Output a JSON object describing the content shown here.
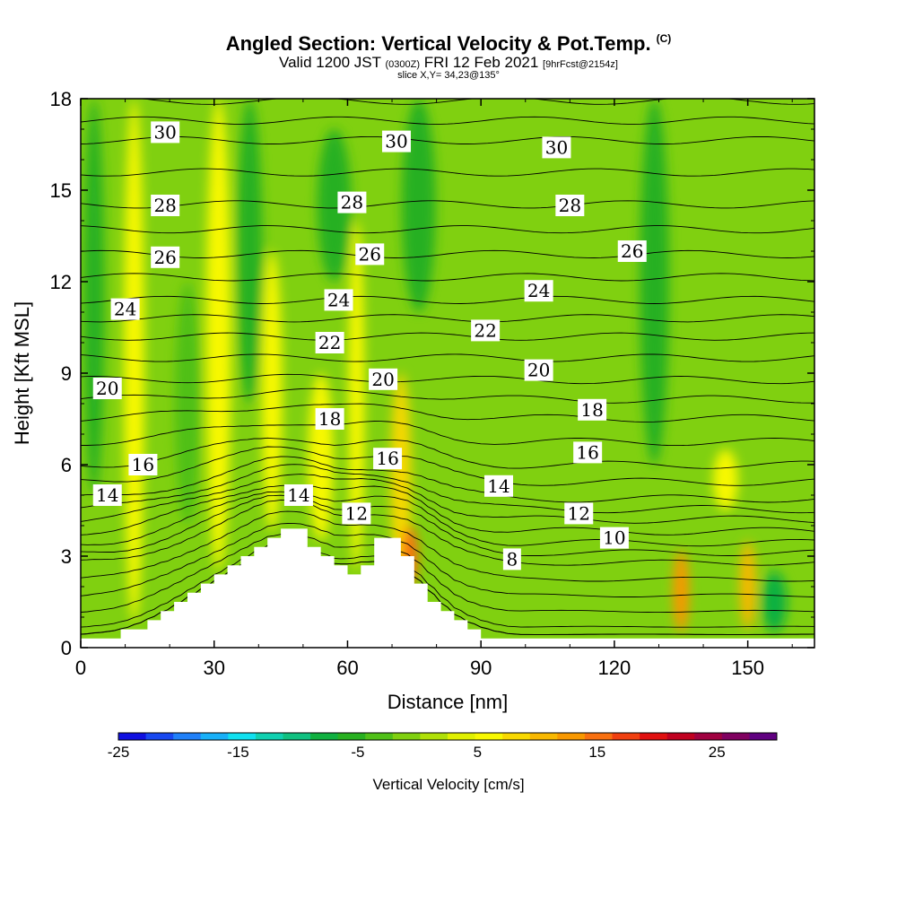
{
  "header": {
    "title": "Angled Section: Vertical Velocity & Pot.Temp.",
    "title_tag": "(C)",
    "valid_prefix": "Valid 1200 JST",
    "valid_utc": "(0300Z)",
    "valid_date": "FRI 12 Feb 2021",
    "forecast_tag": "[9hrFcst@2154z]",
    "slice_note": "slice X,Y= 34,23@135°"
  },
  "chart_data": {
    "type": "heatmap",
    "xlabel": "Distance [nm]",
    "ylabel": "Height [Kft MSL]",
    "xlim": [
      0,
      165
    ],
    "ylim": [
      0,
      18
    ],
    "xticks": [
      0,
      30,
      60,
      90,
      120,
      150
    ],
    "yticks": [
      0,
      3,
      6,
      9,
      12,
      15,
      18
    ],
    "colorbar": {
      "label": "Vertical Velocity [cm/s]",
      "tick_labels": [
        "-25",
        "-15",
        "-5",
        "5",
        "15",
        "25"
      ],
      "tick_values": [
        -25,
        -15,
        -5,
        5,
        15,
        25
      ],
      "range": [
        -25,
        30
      ],
      "colors": [
        "#1010e0",
        "#1848f0",
        "#2080f8",
        "#18b0f8",
        "#10e0f0",
        "#10d0b0",
        "#10c080",
        "#10b040",
        "#28b020",
        "#50c018",
        "#80d010",
        "#b0e008",
        "#e0f000",
        "#f8f800",
        "#f8d800",
        "#f8b800",
        "#f89800",
        "#f87010",
        "#f04010",
        "#e01010",
        "#c00020",
        "#a00040",
        "#800060",
        "#600080"
      ]
    },
    "terrain": [
      [
        0,
        0.3
      ],
      [
        9,
        0.3
      ],
      [
        9,
        0.6
      ],
      [
        15,
        0.6
      ],
      [
        15,
        0.9
      ],
      [
        18,
        0.9
      ],
      [
        18,
        1.2
      ],
      [
        21,
        1.2
      ],
      [
        21,
        1.5
      ],
      [
        24,
        1.5
      ],
      [
        24,
        1.8
      ],
      [
        27,
        1.8
      ],
      [
        27,
        2.1
      ],
      [
        30,
        2.1
      ],
      [
        30,
        2.4
      ],
      [
        33,
        2.4
      ],
      [
        33,
        2.7
      ],
      [
        36,
        2.7
      ],
      [
        36,
        3.0
      ],
      [
        39,
        3.0
      ],
      [
        39,
        3.3
      ],
      [
        42,
        3.3
      ],
      [
        42,
        3.6
      ],
      [
        45,
        3.6
      ],
      [
        45,
        3.9
      ],
      [
        51,
        3.9
      ],
      [
        51,
        3.3
      ],
      [
        54,
        3.3
      ],
      [
        54,
        3.0
      ],
      [
        57,
        3.0
      ],
      [
        57,
        2.7
      ],
      [
        60,
        2.7
      ],
      [
        60,
        2.4
      ],
      [
        63,
        2.4
      ],
      [
        63,
        2.7
      ],
      [
        66,
        2.7
      ],
      [
        66,
        3.6
      ],
      [
        72,
        3.6
      ],
      [
        72,
        3.0
      ],
      [
        75,
        3.0
      ],
      [
        75,
        2.1
      ],
      [
        78,
        2.1
      ],
      [
        78,
        1.5
      ],
      [
        81,
        1.5
      ],
      [
        81,
        1.2
      ],
      [
        84,
        1.2
      ],
      [
        84,
        0.9
      ],
      [
        87,
        0.9
      ],
      [
        87,
        0.6
      ],
      [
        90,
        0.6
      ],
      [
        90,
        0.3
      ],
      [
        165,
        0.3
      ]
    ],
    "theta_contours": [
      {
        "value": 8,
        "label_at": [
          97,
          2.9
        ]
      },
      {
        "value": 10,
        "label_at": [
          120,
          3.6
        ]
      },
      {
        "value": 12,
        "label_at": [
          62,
          4.4
        ]
      },
      {
        "value": 12,
        "label_at": [
          112,
          4.4
        ]
      },
      {
        "value": 14,
        "label_at": [
          6,
          5.0
        ]
      },
      {
        "value": 14,
        "label_at": [
          49,
          5.0
        ]
      },
      {
        "value": 14,
        "label_at": [
          94,
          5.3
        ]
      },
      {
        "value": 16,
        "label_at": [
          14,
          6.0
        ]
      },
      {
        "value": 16,
        "label_at": [
          69,
          6.2
        ]
      },
      {
        "value": 16,
        "label_at": [
          114,
          6.4
        ]
      },
      {
        "value": 18,
        "label_at": [
          56,
          7.5
        ]
      },
      {
        "value": 18,
        "label_at": [
          115,
          7.8
        ]
      },
      {
        "value": 20,
        "label_at": [
          6,
          8.5
        ]
      },
      {
        "value": 20,
        "label_at": [
          68,
          8.8
        ]
      },
      {
        "value": 20,
        "label_at": [
          103,
          9.1
        ]
      },
      {
        "value": 22,
        "label_at": [
          56,
          10.0
        ]
      },
      {
        "value": 22,
        "label_at": [
          91,
          10.4
        ]
      },
      {
        "value": 24,
        "label_at": [
          10,
          11.1
        ]
      },
      {
        "value": 24,
        "label_at": [
          58,
          11.4
        ]
      },
      {
        "value": 24,
        "label_at": [
          103,
          11.7
        ]
      },
      {
        "value": 26,
        "label_at": [
          19,
          12.8
        ]
      },
      {
        "value": 26,
        "label_at": [
          65,
          12.9
        ]
      },
      {
        "value": 26,
        "label_at": [
          124,
          13.0
        ]
      },
      {
        "value": 28,
        "label_at": [
          19,
          14.5
        ]
      },
      {
        "value": 28,
        "label_at": [
          61,
          14.6
        ]
      },
      {
        "value": 28,
        "label_at": [
          110,
          14.5
        ]
      },
      {
        "value": 30,
        "label_at": [
          19,
          16.9
        ]
      },
      {
        "value": 30,
        "label_at": [
          71,
          16.6
        ]
      },
      {
        "value": 30,
        "label_at": [
          107,
          16.4
        ]
      }
    ],
    "updraft_features": [
      {
        "x": 12,
        "y_range": [
          0.8,
          18
        ],
        "width": 3,
        "value": 6
      },
      {
        "x": 31,
        "y_range": [
          2.5,
          18
        ],
        "width": 4,
        "value": 6
      },
      {
        "x": 43,
        "y_range": [
          3.8,
          13
        ],
        "width": 3,
        "value": 5
      },
      {
        "x": 54,
        "y_range": [
          3.5,
          9
        ],
        "width": 4,
        "value": 7
      },
      {
        "x": 62,
        "y_range": [
          2.5,
          14
        ],
        "width": 2,
        "value": 5
      },
      {
        "x": 72,
        "y_range": [
          2.0,
          9
        ],
        "width": 3,
        "value": 8
      },
      {
        "x": 74,
        "y_range": [
          2.0,
          4
        ],
        "width": 2,
        "value": 14
      },
      {
        "x": 135,
        "y_range": [
          0.5,
          3.2
        ],
        "width": 2,
        "value": 12
      },
      {
        "x": 145,
        "y_range": [
          4.5,
          6.5
        ],
        "width": 4,
        "value": 7
      },
      {
        "x": 150,
        "y_range": [
          0.6,
          3.5
        ],
        "width": 2,
        "value": 11
      }
    ],
    "downdraft_features": [
      {
        "x": 3,
        "y_range": [
          5,
          18
        ],
        "width": 3,
        "value": -5
      },
      {
        "x": 24,
        "y_range": [
          4,
          12
        ],
        "width": 4,
        "value": -4
      },
      {
        "x": 38,
        "y_range": [
          8,
          18
        ],
        "width": 4,
        "value": -5
      },
      {
        "x": 57,
        "y_range": [
          12,
          17
        ],
        "width": 6,
        "value": -5
      },
      {
        "x": 76,
        "y_range": [
          11,
          18
        ],
        "width": 6,
        "value": -6
      },
      {
        "x": 129,
        "y_range": [
          6,
          18
        ],
        "width": 5,
        "value": -5
      },
      {
        "x": 156,
        "y_range": [
          0.5,
          2.5
        ],
        "width": 4,
        "value": -8
      }
    ]
  }
}
